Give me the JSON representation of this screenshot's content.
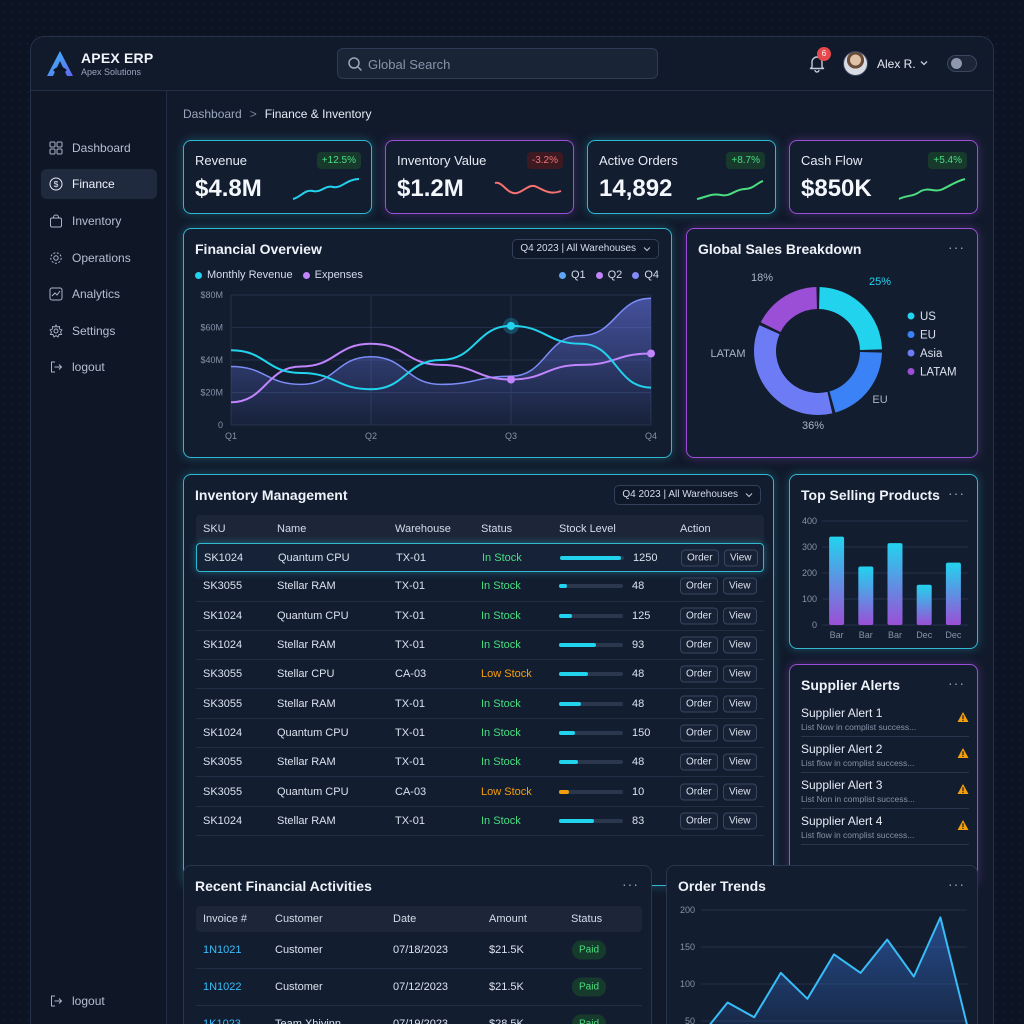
{
  "app": {
    "brand_title": "APEX ERP",
    "brand_sub": "Apex Solutions"
  },
  "header": {
    "search_placeholder": "Global Search",
    "notification_count": "6",
    "user_name": "Alex R."
  },
  "sidebar": {
    "items": [
      {
        "label": "Dashboard",
        "icon": "grid-icon"
      },
      {
        "label": "Finance",
        "icon": "dollar-circle-icon",
        "active": true
      },
      {
        "label": "Inventory",
        "icon": "bag-icon"
      },
      {
        "label": "Operations",
        "icon": "gear-icon"
      },
      {
        "label": "Analytics",
        "icon": "chart-line-icon"
      },
      {
        "label": "Settings",
        "icon": "settings-icon"
      },
      {
        "label": "logout",
        "icon": "logout-icon"
      }
    ],
    "bottom_logout": "logout"
  },
  "breadcrumb": {
    "root": "Dashboard",
    "separator": ">",
    "current": "Finance & Inventory"
  },
  "kpis": [
    {
      "label": "Revenue",
      "value": "$4.8M",
      "change": "+12.5%",
      "trend": "up",
      "color": "#22d3ee"
    },
    {
      "label": "Inventory Value",
      "value": "$1.2M",
      "change": "-3.2%",
      "trend": "down",
      "color": "#f87171"
    },
    {
      "label": "Active Orders",
      "value": "14,892",
      "change": "+8.7%",
      "trend": "up",
      "color": "#4ade80"
    },
    {
      "label": "Cash Flow",
      "value": "$850K",
      "change": "+5.4%",
      "trend": "up",
      "color": "#4ade80"
    }
  ],
  "financial_overview": {
    "title": "Financial Overview",
    "filter": "Q4 2023 | All Warehouses",
    "legend_left": [
      {
        "label": "Monthly Revenue",
        "color": "#22d3ee"
      },
      {
        "label": "Expenses",
        "color": "#c084fc"
      }
    ],
    "legend_right": [
      {
        "label": "Q1",
        "color": "#60a5fa"
      },
      {
        "label": "Q2",
        "color": "#c084fc"
      },
      {
        "label": "Q4",
        "color": "#818cf8"
      }
    ]
  },
  "global_sales": {
    "title": "Global Sales Breakdown",
    "more": "···"
  },
  "inventory": {
    "title": "Inventory Management",
    "filter": "Q4 2023 | All Warehouses",
    "columns": [
      "SKU",
      "Name",
      "Warehouse",
      "Status",
      "Stock Level",
      "Action"
    ],
    "order_label": "Order",
    "view_label": "View",
    "rows": [
      {
        "sku": "SK1024",
        "name": "Quantum CPU",
        "warehouse": "TX-01",
        "status": "In Stock",
        "level": 0.95,
        "qty": "1250",
        "highlight": true
      },
      {
        "sku": "SK3055",
        "name": "Stellar RAM",
        "warehouse": "TX-01",
        "status": "In Stock",
        "level": 0.12,
        "qty": "48"
      },
      {
        "sku": "SK1024",
        "name": "Quantum CPU",
        "warehouse": "TX-01",
        "status": "In Stock",
        "level": 0.2,
        "qty": "125"
      },
      {
        "sku": "SK1024",
        "name": "Stellar RAM",
        "warehouse": "TX-01",
        "status": "In Stock",
        "level": 0.58,
        "qty": "93"
      },
      {
        "sku": "SK3055",
        "name": "Stellar CPU",
        "warehouse": "CA-03",
        "status": "Low Stock",
        "level": 0.45,
        "qty": "48"
      },
      {
        "sku": "SK3055",
        "name": "Stellar RAM",
        "warehouse": "TX-01",
        "status": "In Stock",
        "level": 0.35,
        "qty": "48"
      },
      {
        "sku": "SK1024",
        "name": "Quantum CPU",
        "warehouse": "TX-01",
        "status": "In Stock",
        "level": 0.25,
        "qty": "150"
      },
      {
        "sku": "SK3055",
        "name": "Stellar RAM",
        "warehouse": "TX-01",
        "status": "In Stock",
        "level": 0.3,
        "qty": "48"
      },
      {
        "sku": "SK3055",
        "name": "Quantum CPU",
        "warehouse": "CA-03",
        "status": "Low Stock",
        "level": 0.15,
        "qty": "10",
        "warn": true
      },
      {
        "sku": "SK1024",
        "name": "Stellar RAM",
        "warehouse": "TX-01",
        "status": "In Stock",
        "level": 0.55,
        "qty": "83"
      }
    ]
  },
  "top_selling": {
    "title": "Top Selling Products"
  },
  "supplier_alerts": {
    "title": "Supplier Alerts",
    "items": [
      {
        "title": "Supplier Alert 1",
        "sub": "List Now in complist success..."
      },
      {
        "title": "Supplier Alert 2",
        "sub": "List flow in complist success..."
      },
      {
        "title": "Supplier Alert 3",
        "sub": "List Non in complist success..."
      },
      {
        "title": "Supplier Alert 4",
        "sub": "List flow in complist success..."
      }
    ]
  },
  "recent_activities": {
    "title": "Recent Financial Activities",
    "columns": [
      "Invoice #",
      "Customer",
      "Date",
      "Amount",
      "Status"
    ],
    "rows": [
      {
        "invoice": "1N1021",
        "customer": "Customer",
        "date": "07/18/2023",
        "amount": "$21.5K",
        "status": "Paid"
      },
      {
        "invoice": "1N1022",
        "customer": "Customer",
        "date": "07/12/2023",
        "amount": "$21.5K",
        "status": "Paid"
      },
      {
        "invoice": "1K1023",
        "customer": "Team Xhjyinn",
        "date": "07/19/2023",
        "amount": "$28.5K",
        "status": "Paid"
      }
    ]
  },
  "order_trends": {
    "title": "Order Trends"
  },
  "chart_data": [
    {
      "id": "financial_overview",
      "type": "line",
      "categories": [
        "Q1",
        "Q2",
        "Q3",
        "Q4"
      ],
      "ylim": [
        0,
        80
      ],
      "y_ticks": [
        "0",
        "$20M",
        "$40M",
        "$60M",
        "$80M"
      ],
      "grid": true,
      "series": [
        {
          "name": "Monthly Revenue",
          "color": "#22d3ee",
          "x": [
            0,
            0.5,
            1,
            1.5,
            2,
            2.5,
            3
          ],
          "values": [
            46,
            32,
            22,
            40,
            61,
            50,
            23
          ]
        },
        {
          "name": "Expenses",
          "color": "#c084fc",
          "x": [
            0,
            0.5,
            1,
            1.5,
            2,
            2.5,
            3
          ],
          "values": [
            14,
            36,
            50,
            37,
            28,
            37,
            44
          ]
        },
        {
          "name": "Area",
          "color": "#6d7cf5",
          "x": [
            0,
            0.5,
            1,
            1.5,
            2,
            2.5,
            3
          ],
          "values": [
            36,
            25,
            42,
            25,
            30,
            55,
            78
          ]
        }
      ]
    },
    {
      "id": "global_sales",
      "type": "pie",
      "labels": [
        "US",
        "EU",
        "Asia",
        "LATAM"
      ],
      "values": [
        25,
        21,
        36,
        18
      ],
      "colors": [
        "#22d3ee",
        "#3b82f6",
        "#6d7cf5",
        "#9b4fd6"
      ],
      "legend_position": "right",
      "annotations": [
        {
          "text": "25%"
        },
        {
          "text": "EU"
        },
        {
          "text": "36%"
        },
        {
          "text": "LATAM"
        },
        {
          "text": "18%"
        }
      ]
    },
    {
      "id": "top_selling",
      "type": "bar",
      "categories": [
        "Bar",
        "Bar",
        "Bar",
        "Dec",
        "Dec"
      ],
      "values": [
        340,
        225,
        315,
        155,
        240
      ],
      "ylim": [
        0,
        400
      ],
      "y_ticks": [
        "0",
        "100",
        "200",
        "300",
        "400"
      ],
      "grid": true
    },
    {
      "id": "order_trends",
      "type": "area",
      "x": [
        0,
        1,
        2,
        3,
        4,
        5,
        6,
        7,
        8,
        9,
        10
      ],
      "values": [
        30,
        75,
        55,
        115,
        80,
        140,
        115,
        160,
        110,
        190,
        45
      ],
      "ylim": [
        0,
        200
      ],
      "y_ticks": [
        "50",
        "100",
        "150",
        "200"
      ],
      "grid": true
    }
  ]
}
